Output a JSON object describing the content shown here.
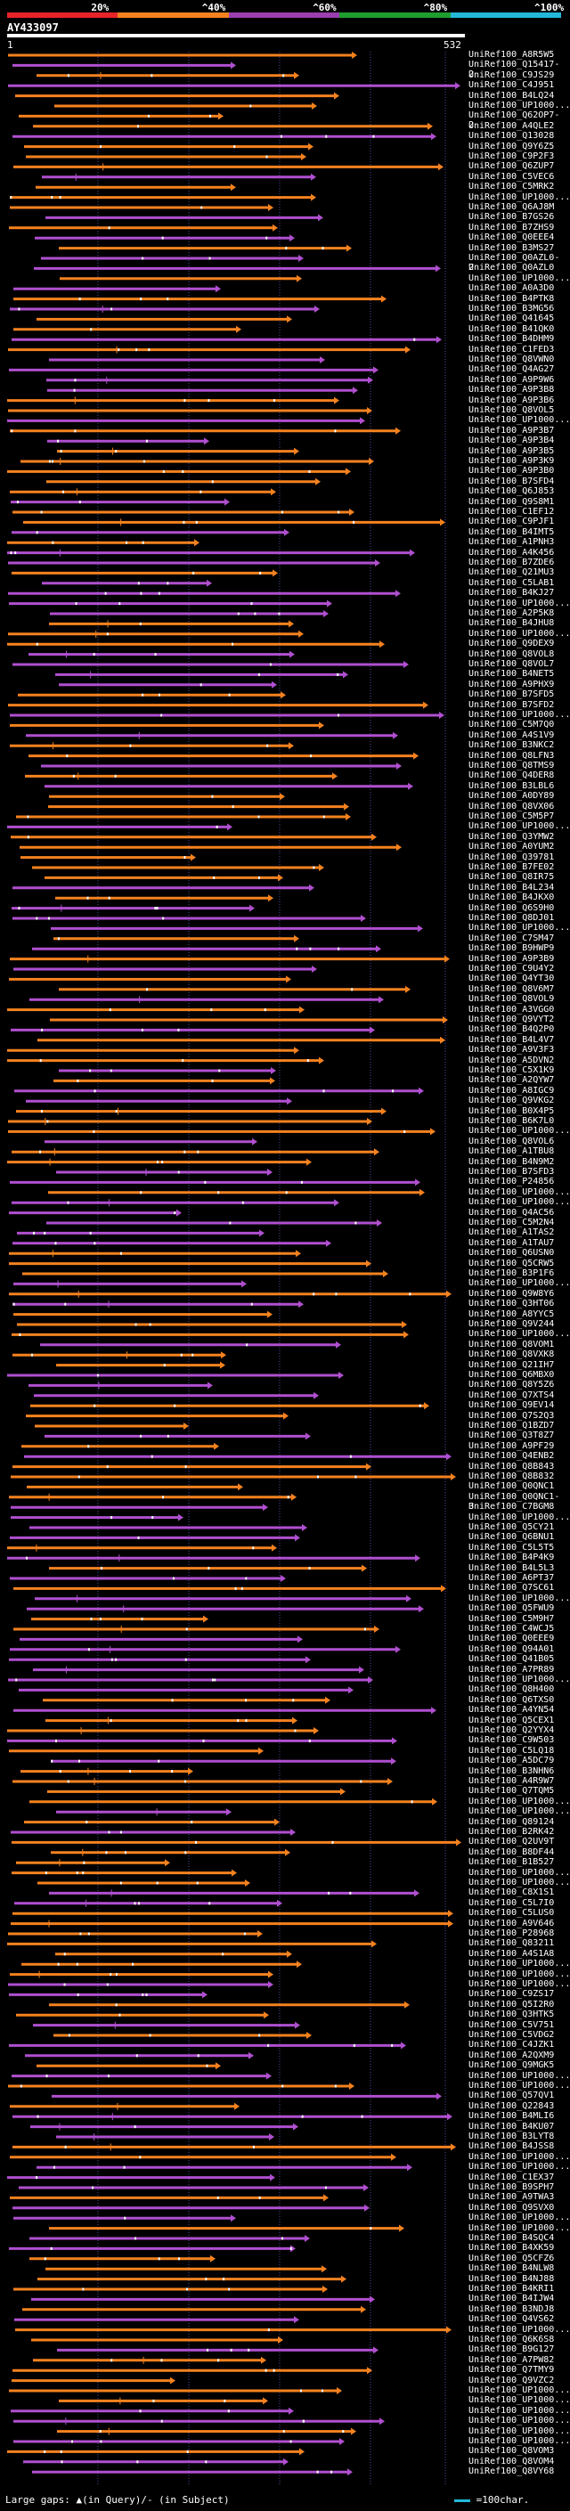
{
  "legend": {
    "segments": [
      {
        "label": "20%",
        "color": "#e8232a"
      },
      {
        "label": "^40%",
        "color": "#f5821f"
      },
      {
        "label": "^60%",
        "color": "#9b3fb0"
      },
      {
        "label": "^80%",
        "color": "#1e9e2f"
      },
      {
        "label": "^100%",
        "color": "#22b8d8"
      }
    ]
  },
  "query": {
    "id": "AY433097",
    "start": "1",
    "end": "532"
  },
  "colors": {
    "orange": "#f5821f",
    "purple": "#b04fd0",
    "green": "#35b235",
    "gap": "#ffffff",
    "grid": "#4a4a9a"
  },
  "hits": [
    "UniRef100_A8R5W5",
    "UniRef100_Q15417-2",
    "UniRef100_C9JS29",
    "UniRef100_C4J951",
    "UniRef100_B4LQ24",
    "UniRef100_UP1000...",
    "UniRef100_Q62OP7-2",
    "UniRef100_A4QLE2",
    "UniRef100_Q13028",
    "UniRef100_Q9Y6Z5",
    "UniRef100_C9P2F3",
    "UniRef100_Q6ZUP7",
    "UniRef100_C5VEC6",
    "UniRef100_C5MRK2",
    "UniRef100_UP1000...",
    "UniRef100_Q6AJ8M",
    "UniRef100_B7GS26",
    "UniRef100_B7ZHS9",
    "UniRef100_Q0EEE4",
    "UniRef100_B3MS27",
    "UniRef100_Q0AZL0-2",
    "UniRef100_Q0AZL0",
    "UniRef100_UP1000...",
    "UniRef100_A0A3D0",
    "UniRef100_B4PTK8",
    "UniRef100_B3MG56",
    "UniRef100_Q41645",
    "UniRef100_B41QK0",
    "UniRef100_B4DHM9",
    "UniRef100_C1FED3",
    "UniRef100_Q8VWN0",
    "UniRef100_Q4AG27",
    "UniRef100_A9P9W6",
    "UniRef100_A9P3B8",
    "UniRef100_A9P3B6",
    "UniRef100_Q8VOL5",
    "UniRef100_UP1000...",
    "UniRef100_A9P3B7",
    "UniRef100_A9P3B4",
    "UniRef100_A9P3B5",
    "UniRef100_A9P3K9",
    "UniRef100_A9P3B0",
    "UniRef100_B7SFD4",
    "UniRef100_Q6J853",
    "UniRef100_Q9S8M1",
    "UniRef100_C1EF12",
    "UniRef100_C9PJF1",
    "UniRef100_B4IMT5",
    "UniRef100_A1PNH3",
    "UniRef100_A4K456",
    "UniRef100_B7ZDE6",
    "UniRef100_Q21MU3",
    "UniRef100_C5LAB1",
    "UniRef100_B4KJ27",
    "UniRef100_UP1000...",
    "UniRef100_A2P5K8",
    "UniRef100_B4JHU8",
    "UniRef100_UP1000...",
    "UniRef100_Q9DEX9",
    "UniRef100_Q8VOL8",
    "UniRef100_Q8VOL7",
    "UniRef100_B4NET5",
    "UniRef100_A9PHX9",
    "UniRef100_B7SFD5",
    "UniRef100_B7SFD2",
    "UniRef100_UP1000...",
    "UniRef100_C5M7Q0",
    "UniRef100_A4S1V9",
    "UniRef100_B3NKC2",
    "UniRef100_Q8LFN3",
    "UniRef100_Q8TMS9",
    "UniRef100_Q4DER8",
    "UniRef100_B3LBL6",
    "UniRef100_A0DY89",
    "UniRef100_Q8VX06",
    "UniRef100_C5M5P7",
    "UniRef100_UP1000...",
    "UniRef100_Q3YMW2",
    "UniRef100_A0YUM2",
    "UniRef100_Q39781",
    "UniRef100_B7FE02",
    "UniRef100_Q8IR75",
    "UniRef100_B4L234",
    "UniRef100_B4JKX0",
    "UniRef100_Q6S9H0",
    "UniRef100_Q8DJ01",
    "UniRef100_UP1000...",
    "UniRef100_C7SM47",
    "UniRef100_B9HWP9",
    "UniRef100_A9P3B9",
    "UniRef100_C9U4Y2",
    "UniRef100_Q4YT30",
    "UniRef100_Q8V6M7",
    "UniRef100_Q8VOL9",
    "UniRef100_A3VGG0",
    "UniRef100_Q9VYT2",
    "UniRef100_B4Q2P0",
    "UniRef100_B4L4V7",
    "UniRef100_A9V3F3",
    "UniRef100_A5DVN2",
    "UniRef100_C5X1K9",
    "UniRef100_A2QYW7",
    "UniRef100_A8IGC9",
    "UniRef100_Q9VKG2",
    "UniRef100_B0X4P5",
    "UniRef100_B6K7L0",
    "UniRef100_UP1000...",
    "UniRef100_Q8VOL6",
    "UniRef100_A1TBU8",
    "UniRef100_B4N9M2",
    "UniRef100_B7SFD3",
    "UniRef100_P24856",
    "UniRef100_UP1000...",
    "UniRef100_UP1000...",
    "UniRef100_Q4AC56",
    "UniRef100_C5M2N4",
    "UniRef100_A1TAS2",
    "UniRef100_A1TAU7",
    "UniRef100_Q6USN0",
    "UniRef100_Q5CRW5",
    "UniRef100_B3P1F6",
    "UniRef100_UP1000...",
    "UniRef100_Q9W8Y6",
    "UniRef100_Q3HT06",
    "UniRef100_A8YYC5",
    "UniRef100_Q9V244",
    "UniRef100_UP1000...",
    "UniRef100_Q8VOM1",
    "UniRef100_Q8VXK8",
    "UniRef100_Q21IH7",
    "UniRef100_Q6MBX0",
    "UniRef100_Q8Y5Z6",
    "UniRef100_Q7XTS4",
    "UniRef100_Q9EV14",
    "UniRef100_Q7S2Q3",
    "UniRef100_Q1BZD7",
    "UniRef100_Q3T8Z7",
    "UniRef100_A9PF29",
    "UniRef100_Q4ENB2",
    "UniRef100_Q8B843",
    "UniRef100_Q8B832",
    "UniRef100_Q0QNC1",
    "UniRef100_Q0QNC1-3",
    "UniRef100_C7BGM8",
    "UniRef100_UP1000...",
    "UniRef100_Q5CY21",
    "UniRef100_Q6BNU1",
    "UniRef100_C5L5T5",
    "UniRef100_B4P4K9",
    "UniRef100_B4L5L3",
    "UniRef100_A6PT37",
    "UniRef100_Q7SC61",
    "UniRef100_UP1000...",
    "UniRef100_Q5FWU9",
    "UniRef100_C5M9H7",
    "UniRef100_C4WCJ5",
    "UniRef100_Q0EEE9",
    "UniRef100_Q94A01",
    "UniRef100_Q41B05",
    "UniRef100_A7PR89",
    "UniRef100_UP1000...",
    "UniRef100_Q8H400",
    "UniRef100_Q6TXS0",
    "UniRef100_A4YN54",
    "UniRef100_Q5CEX1",
    "UniRef100_Q2YYX4",
    "UniRef100_C9W503",
    "UniRef100_C5LQ18",
    "UniRef100_A5DC79",
    "UniRef100_B3NHN6",
    "UniRef100_A4R9W7",
    "UniRef100_Q7TQM5",
    "UniRef100_UP1000...",
    "UniRef100_UP1000...",
    "UniRef100_Q89124",
    "UniRef100_B2RK42",
    "UniRef100_Q2UV9T",
    "UniRef100_B8DF44",
    "UniRef100_B1B527",
    "UniRef100_UP1000...",
    "UniRef100_UP1000...",
    "UniRef100_C8X1S1",
    "UniRef100_C5L7I0",
    "UniRef100_C5LUS0",
    "UniRef100_A9V646",
    "UniRef100_P28968",
    "UniRef100_Q83211",
    "UniRef100_A4S1A8",
    "UniRef100_UP1000...",
    "UniRef100_UP1000...",
    "UniRef100_UP1000...",
    "UniRef100_C9ZS17",
    "UniRef100_Q5I2R0",
    "UniRef100_Q3HTK5",
    "UniRef100_C5V751",
    "UniRef100_C5VDG2",
    "UniRef100_C4JZK1",
    "UniRef100_A2QXM9",
    "UniRef100_Q9MGK5",
    "UniRef100_UP1000...",
    "UniRef100_UP1000...",
    "UniRef100_Q57QV1",
    "UniRef100_Q22843",
    "UniRef100_B4MLI6",
    "UniRef100_B4KU07",
    "UniRef100_B3LYT8",
    "UniRef100_B4JSS8",
    "UniRef100_UP1000...",
    "UniRef100_UP1000...",
    "UniRef100_C1EX37",
    "UniRef100_B9SPH7",
    "UniRef100_A9TWA3",
    "UniRef100_Q9SVX0",
    "UniRef100_UP1000...",
    "UniRef100_UP1000...",
    "UniRef100_B4SQC4",
    "UniRef100_B4XK59",
    "UniRef100_Q5CFZ6",
    "UniRef100_B4NLW8",
    "UniRef100_B4NJ88",
    "UniRef100_B4KRI1",
    "UniRef100_B4IJW4",
    "UniRef100_B3NDJ8",
    "UniRef100_Q4VS62",
    "UniRef100_UP1000...",
    "UniRef100_Q6K6S8",
    "UniRef100_B9G127",
    "UniRef100_A7PW82",
    "UniRef100_Q7TMY9",
    "UniRef100_Q9VZC2",
    "UniRef100_UP1000...",
    "UniRef100_UP1000...",
    "UniRef100_UP1000...",
    "UniRef100_UP1000...",
    "UniRef100_UP1000...",
    "UniRef100_UP1000...",
    "UniRef100_Q8VOM3",
    "UniRef100_Q8VOM4",
    "UniRef100_Q8VY68"
  ],
  "footer": {
    "left_text": "Large gaps: ▲(in Query)/- (in Subject)",
    "right_text": "=100char."
  }
}
